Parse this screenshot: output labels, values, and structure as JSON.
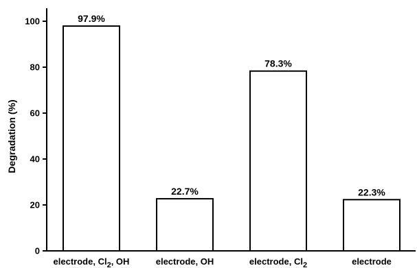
{
  "chart_data": {
    "type": "bar",
    "title": "",
    "xlabel": "",
    "ylabel": "Degradation (%)",
    "ylim": [
      0,
      100
    ],
    "yticks": [
      0,
      20,
      40,
      60,
      80,
      100
    ],
    "grid": false,
    "categories": [
      {
        "text": "electrode, Cl",
        "sub": "2",
        "suffix": ", OH"
      },
      {
        "text": "electrode, OH",
        "sub": "",
        "suffix": ""
      },
      {
        "text": "electrode, Cl",
        "sub": "2",
        "suffix": ""
      },
      {
        "text": "electrode",
        "sub": "",
        "suffix": ""
      }
    ],
    "values": [
      97.9,
      22.7,
      78.3,
      22.3
    ],
    "data_labels": [
      "97.9%",
      "22.7%",
      "78.3%",
      "22.3%"
    ],
    "bar_fill": "#ffffff",
    "bar_stroke": "#000000"
  }
}
